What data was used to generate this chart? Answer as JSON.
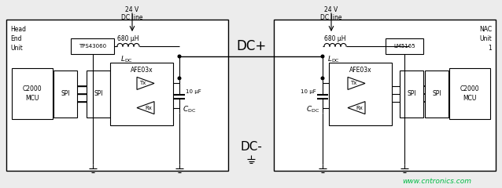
{
  "bg_color": "#ececec",
  "line_color": "#000000",
  "box_color": "#ffffff",
  "watermark_color": "#00bb44",
  "watermark_text": "www.cntronics.com",
  "dc_plus_label": "DC+",
  "dc_minus_label": "DC-",
  "left_box_label": "Head\nEnd\nUnit",
  "right_box_label": "NAC\nUnit\n1",
  "dc_line_label": "24 V\nDC line",
  "inductor_label": "680 μH",
  "ldc_label": "$L_\\mathrm{DC}$",
  "cdc_label": "$C_\\mathrm{DC}$",
  "cap_label": "10 μF",
  "left_ic1": "TPS43060",
  "right_ic1": "LM5165",
  "afe_label": "AFE03x",
  "tx_label": "Tx",
  "rx_label": "Rx",
  "spi_label": "SPI",
  "mcu_label": "C2000\nMCU"
}
